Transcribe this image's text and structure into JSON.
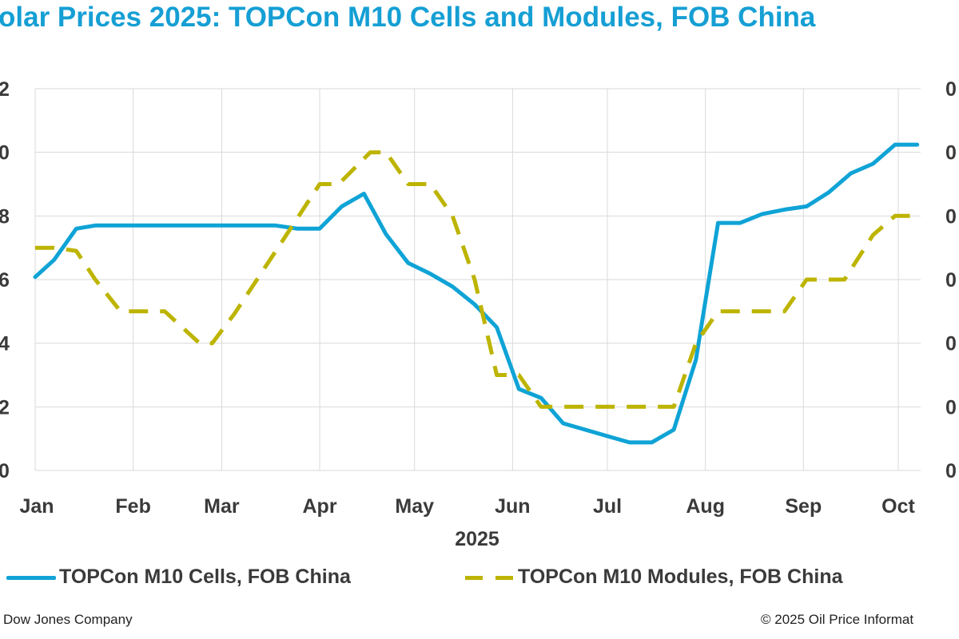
{
  "chart_data": {
    "type": "line",
    "title": "olar Prices 2025: TOPCon M10 Cells and Modules, FOB China",
    "xlabel": "2025",
    "x_tick_labels": [
      "Jan",
      "Feb",
      "Mar",
      "Apr",
      "May",
      "Jun",
      "Jul",
      "Aug",
      "Sep",
      "Oct"
    ],
    "x_ticks": [
      "2025-01-01",
      "2025-02-01",
      "2025-03-01",
      "2025-04-01",
      "2025-05-01",
      "2025-06-01",
      "2025-07-01",
      "2025-08-01",
      "2025-09-01",
      "2025-10-01"
    ],
    "xlim": [
      "2025-01-01",
      "2025-10-08"
    ],
    "left_y_tick_labels": [
      "2",
      "0",
      "8",
      "6",
      "4",
      "2",
      "0"
    ],
    "right_y_tick_labels": [
      "0",
      "0",
      "0",
      "0",
      "0",
      "0",
      "0"
    ],
    "ylim": [
      0,
      6
    ],
    "grid": true,
    "legend_position": "bottom",
    "series": [
      {
        "name": "TOPCon M10 Cells, FOB China",
        "color": "#0fa3d6",
        "style": "solid",
        "x": [
          "2025-01-01",
          "2025-01-07",
          "2025-01-14",
          "2025-01-20",
          "2025-03-18",
          "2025-03-25",
          "2025-04-01",
          "2025-04-08",
          "2025-04-15",
          "2025-04-22",
          "2025-04-29",
          "2025-05-06",
          "2025-05-13",
          "2025-05-20",
          "2025-05-27",
          "2025-06-03",
          "2025-06-10",
          "2025-06-17",
          "2025-06-24",
          "2025-07-01",
          "2025-07-08",
          "2025-07-15",
          "2025-07-22",
          "2025-07-29",
          "2025-08-05",
          "2025-08-12",
          "2025-08-19",
          "2025-08-26",
          "2025-09-02",
          "2025-09-09",
          "2025-09-16",
          "2025-09-23",
          "2025-09-30",
          "2025-10-07"
        ],
        "values": [
          3.04,
          3.31,
          3.8,
          3.85,
          3.85,
          3.8,
          3.8,
          4.15,
          4.35,
          3.71,
          3.26,
          3.09,
          2.89,
          2.61,
          2.25,
          1.28,
          1.14,
          0.74,
          0.64,
          0.54,
          0.44,
          0.44,
          0.64,
          1.74,
          3.89,
          3.89,
          4.03,
          4.1,
          4.15,
          4.37,
          4.67,
          4.82,
          5.12,
          5.12
        ]
      },
      {
        "name": "TOPCon M10 Modules, FOB China",
        "color": "#bdb400",
        "style": "dashed",
        "x": [
          "2025-01-01",
          "2025-01-07",
          "2025-01-14",
          "2025-01-20",
          "2025-01-28",
          "2025-02-11",
          "2025-02-22",
          "2025-02-26",
          "2025-03-05",
          "2025-03-18",
          "2025-04-01",
          "2025-04-07",
          "2025-04-17",
          "2025-04-22",
          "2025-04-29",
          "2025-05-06",
          "2025-05-13",
          "2025-05-20",
          "2025-05-27",
          "2025-06-03",
          "2025-06-10",
          "2025-07-22",
          "2025-07-29",
          "2025-08-05",
          "2025-08-26",
          "2025-09-02",
          "2025-09-14",
          "2025-09-23",
          "2025-09-30",
          "2025-10-07"
        ],
        "values": [
          3.5,
          3.5,
          3.45,
          3.0,
          2.5,
          2.5,
          2.0,
          2.0,
          2.46,
          3.44,
          4.5,
          4.5,
          5.0,
          5.0,
          4.5,
          4.5,
          4.0,
          3.0,
          1.5,
          1.5,
          1.0,
          1.0,
          2.0,
          2.5,
          2.5,
          3.0,
          3.0,
          3.7,
          4.0,
          4.0
        ]
      }
    ]
  },
  "footer": {
    "left": "Dow Jones Company",
    "right": "© 2025 Oil Price Informat"
  }
}
